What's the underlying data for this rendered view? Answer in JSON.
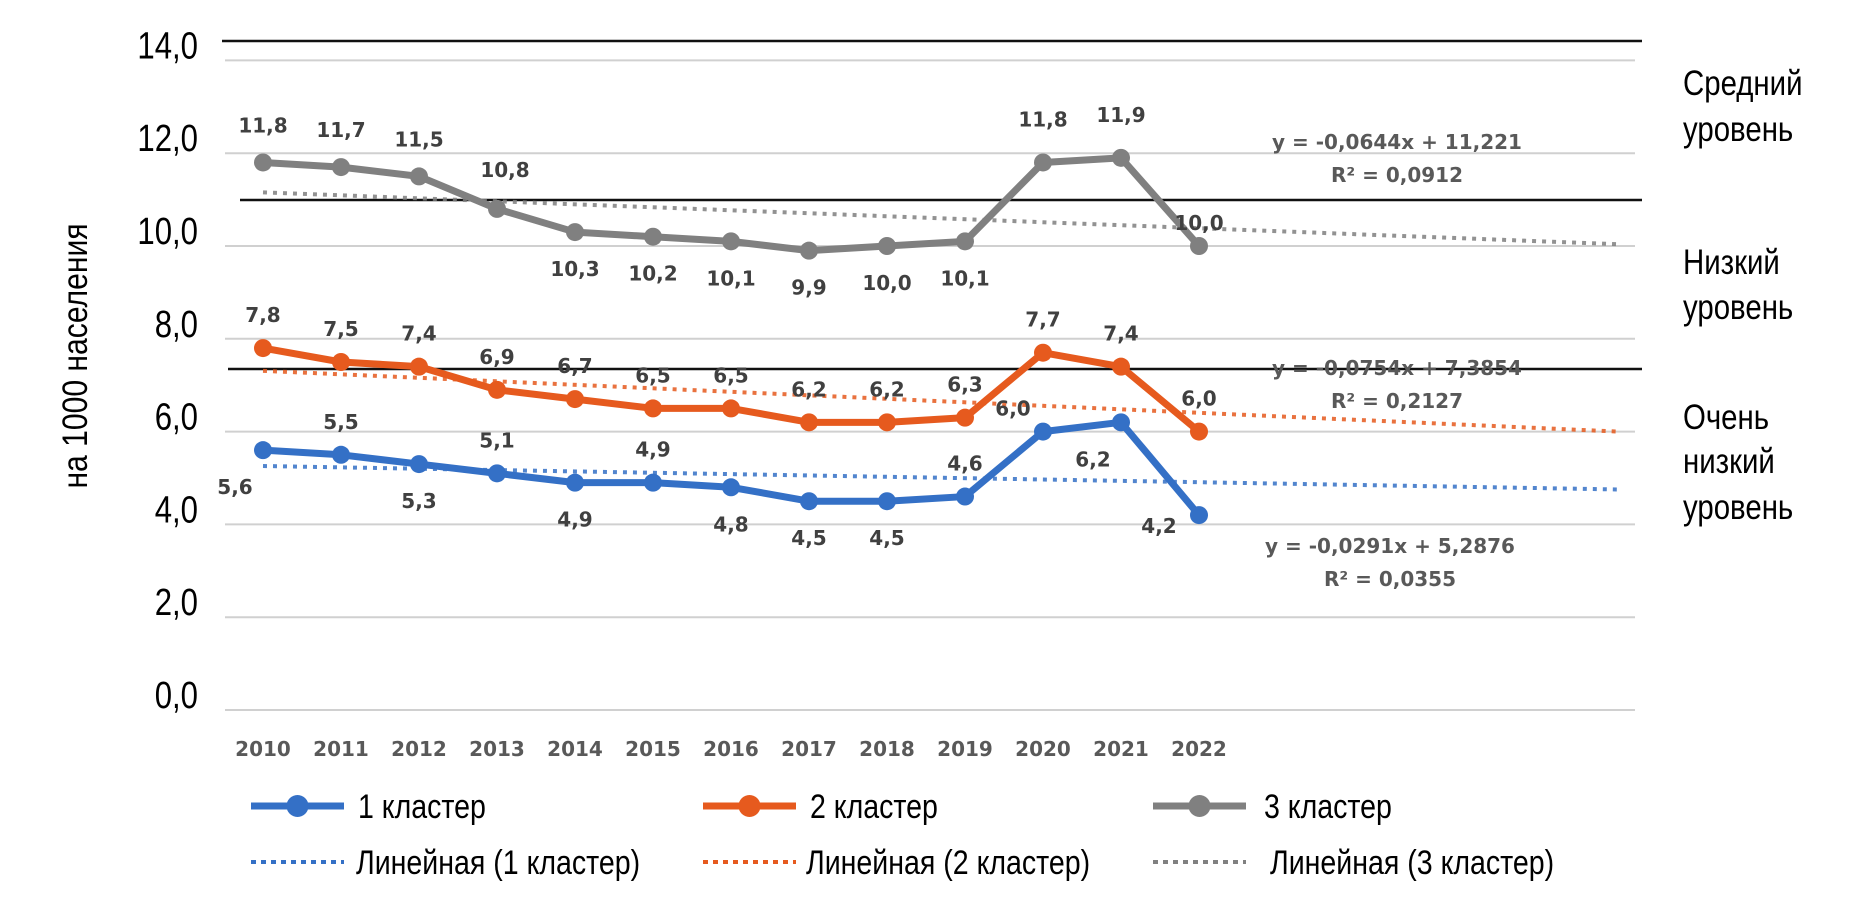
{
  "chart_data": {
    "type": "line",
    "title": "",
    "xlabel": "",
    "ylabel": "на 1000 населения",
    "ylim": [
      0,
      14
    ],
    "y_ticks": [
      "0,0",
      "2,0",
      "4,0",
      "6,0",
      "8,0",
      "10,0",
      "12,0",
      "14,0"
    ],
    "y_tick_values": [
      0,
      2,
      4,
      6,
      8,
      10,
      12,
      14
    ],
    "grid": true,
    "categories": [
      "2010",
      "2011",
      "2012",
      "2013",
      "2014",
      "2015",
      "2016",
      "2017",
      "2018",
      "2019",
      "2020",
      "2021",
      "2022"
    ],
    "series": [
      {
        "name": "1 кластер",
        "color": "#3470C6",
        "values": [
          5.6,
          5.5,
          5.3,
          5.1,
          4.9,
          4.9,
          4.8,
          4.5,
          4.5,
          4.6,
          6.0,
          6.2,
          4.2
        ],
        "labels": [
          "5,6",
          "5,5",
          "5,3",
          "5,1",
          "4,9",
          "4,9",
          "4,8",
          "4,5",
          "4,5",
          "4,6",
          "6,0",
          "6,2",
          "4,2"
        ],
        "label_position": [
          "below-left",
          "above",
          "below",
          "above",
          "below",
          "above",
          "below",
          "below",
          "below",
          "above",
          "above-left",
          "below-left",
          "left"
        ],
        "trend": {
          "name": "Линейная (1 кластер)",
          "slope": -0.0291,
          "intercept": 5.2876,
          "equation": "y = -0,0291x + 5,2876",
          "r2": "R² = 0,0355"
        }
      },
      {
        "name": "2 кластер",
        "color": "#E65A1E",
        "values": [
          7.8,
          7.5,
          7.4,
          6.9,
          6.7,
          6.5,
          6.5,
          6.2,
          6.2,
          6.3,
          7.7,
          7.4,
          6.0
        ],
        "labels": [
          "7,8",
          "7,5",
          "7,4",
          "6,9",
          "6,7",
          "6,5",
          "6,5",
          "6,2",
          "6,2",
          "6,3",
          "7,7",
          "7,4",
          "6,0"
        ],
        "label_position": [
          "above",
          "above",
          "above",
          "above",
          "above",
          "above",
          "above",
          "above",
          "above",
          "above",
          "above",
          "above",
          "above"
        ],
        "trend": {
          "name": "Линейная (2 кластер)",
          "slope": -0.0754,
          "intercept": 7.3854,
          "equation": "y = -0,0754x + 7,3854",
          "r2": "R² = 0,2127"
        }
      },
      {
        "name": "3 кластер",
        "color": "#808080",
        "values": [
          11.8,
          11.7,
          11.5,
          10.8,
          10.3,
          10.2,
          10.1,
          9.9,
          10.0,
          10.1,
          11.8,
          11.9,
          10.0
        ],
        "labels": [
          "11,8",
          "11,7",
          "11,5",
          "10,8",
          "10,3",
          "10,2",
          "10,1",
          "9,9",
          "10,0",
          "10,1",
          "11,8",
          "11,9",
          "10,0"
        ],
        "label_position": [
          "above",
          "above",
          "above",
          "above",
          "below",
          "below",
          "below",
          "below",
          "below",
          "below",
          "above",
          "above",
          "above"
        ],
        "trend": {
          "name": "Линейная (3 кластер)",
          "slope": -0.0644,
          "intercept": 11.221,
          "equation": "y = -0,0644x + 11,221",
          "r2": "R² = 0,0912"
        }
      }
    ],
    "trend_forecast_end_index": 18.4,
    "reference_lines": [
      {
        "value": 14.0
      },
      {
        "value": 11.0
      },
      {
        "value": 7.3
      }
    ],
    "zones": [
      {
        "lines": [
          "Средний",
          "уровень"
        ]
      },
      {
        "lines": [
          "Низкий",
          "уровень"
        ]
      },
      {
        "lines": [
          "Очень",
          "низкий",
          "уровень"
        ]
      }
    ],
    "legend": {
      "position": "bottom",
      "items": [
        "1 кластер",
        "2 кластер",
        "3 кластер",
        "Линейная (1 кластер)",
        "Линейная (2 кластер)",
        "Линейная (3 кластер)"
      ]
    }
  }
}
